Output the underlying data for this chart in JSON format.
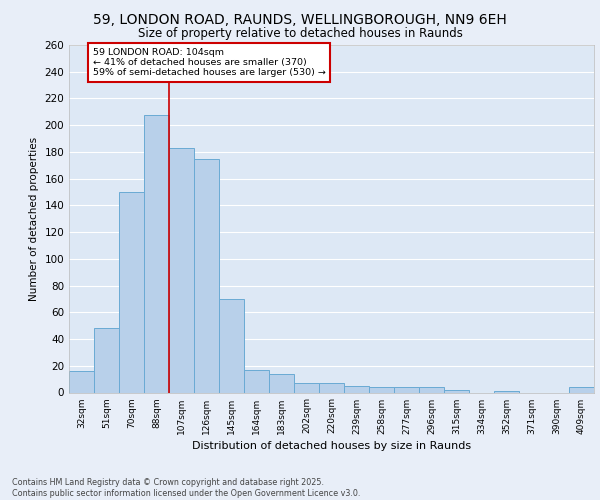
{
  "title_line1": "59, LONDON ROAD, RAUNDS, WELLINGBOROUGH, NN9 6EH",
  "title_line2": "Size of property relative to detached houses in Raunds",
  "xlabel": "Distribution of detached houses by size in Raunds",
  "ylabel": "Number of detached properties",
  "categories": [
    "32sqm",
    "51sqm",
    "70sqm",
    "88sqm",
    "107sqm",
    "126sqm",
    "145sqm",
    "164sqm",
    "183sqm",
    "202sqm",
    "220sqm",
    "239sqm",
    "258sqm",
    "277sqm",
    "296sqm",
    "315sqm",
    "334sqm",
    "352sqm",
    "371sqm",
    "390sqm",
    "409sqm"
  ],
  "values": [
    16,
    48,
    150,
    208,
    183,
    175,
    70,
    17,
    14,
    7,
    7,
    5,
    4,
    4,
    4,
    2,
    0,
    1,
    0,
    0,
    4
  ],
  "bar_color": "#b8d0ea",
  "bar_edge_color": "#6aaad4",
  "background_color": "#dde8f5",
  "fig_background_color": "#e8eef8",
  "grid_color": "#ffffff",
  "annotation_text": "59 LONDON ROAD: 104sqm\n← 41% of detached houses are smaller (370)\n59% of semi-detached houses are larger (530) →",
  "annotation_box_color": "#ffffff",
  "annotation_box_edge": "#cc0000",
  "vline_color": "#cc0000",
  "vline_index": 3.5,
  "ylim": [
    0,
    260
  ],
  "yticks": [
    0,
    20,
    40,
    60,
    80,
    100,
    120,
    140,
    160,
    180,
    200,
    220,
    240,
    260
  ],
  "footer_line1": "Contains HM Land Registry data © Crown copyright and database right 2025.",
  "footer_line2": "Contains public sector information licensed under the Open Government Licence v3.0."
}
